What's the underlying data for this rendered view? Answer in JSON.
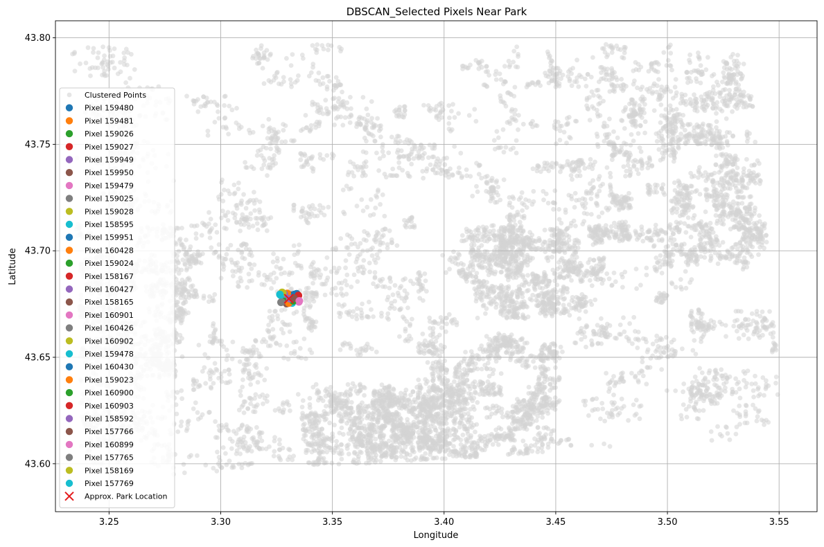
{
  "chart_data": {
    "type": "scatter",
    "title": "DBSCAN_Selected Pixels Near Park",
    "xlabel": "Longitude",
    "ylabel": "Latitude",
    "xlim": [
      3.226,
      3.567
    ],
    "ylim": [
      43.5775,
      43.808
    ],
    "grid": true,
    "legend_position": "center-left",
    "x_ticks": [
      {
        "value": 3.25,
        "label": "3.25"
      },
      {
        "value": 3.3,
        "label": "3.30"
      },
      {
        "value": 3.35,
        "label": "3.35"
      },
      {
        "value": 3.4,
        "label": "3.40"
      },
      {
        "value": 3.45,
        "label": "3.45"
      },
      {
        "value": 3.5,
        "label": "3.50"
      },
      {
        "value": 3.55,
        "label": "3.55"
      }
    ],
    "y_ticks": [
      {
        "value": 43.6,
        "label": "43.60"
      },
      {
        "value": 43.65,
        "label": "43.65"
      },
      {
        "value": 43.7,
        "label": "43.70"
      },
      {
        "value": 43.75,
        "label": "43.75"
      },
      {
        "value": 43.8,
        "label": "43.80"
      }
    ],
    "background_series": {
      "name": "Clustered Points",
      "color": "#d3d3d3",
      "extent_polygon": [
        [
          3.233,
          43.797
        ],
        [
          3.536,
          43.797
        ],
        [
          3.553,
          43.612
        ],
        [
          3.238,
          43.592
        ]
      ]
    },
    "park_marker": {
      "name": "Approx. Park Location",
      "x": 3.3305,
      "y": 43.6775,
      "color": "#e41a1c"
    },
    "series": [
      {
        "name": "Pixel 159480",
        "color": "#1f77b4",
        "x": 3.3318,
        "y": 43.6785
      },
      {
        "name": "Pixel 159481",
        "color": "#ff7f0e",
        "x": 3.3335,
        "y": 43.6782
      },
      {
        "name": "Pixel 159026",
        "color": "#2ca02c",
        "x": 3.3312,
        "y": 43.6768
      },
      {
        "name": "Pixel 159027",
        "color": "#d62728",
        "x": 3.333,
        "y": 43.677
      },
      {
        "name": "Pixel 159949",
        "color": "#9467bd",
        "x": 3.33,
        "y": 43.679
      },
      {
        "name": "Pixel 159950",
        "color": "#8c564b",
        "x": 3.3315,
        "y": 43.6792
      },
      {
        "name": "Pixel 159479",
        "color": "#e377c2",
        "x": 3.3302,
        "y": 43.6782
      },
      {
        "name": "Pixel 159025",
        "color": "#7f7f7f",
        "x": 3.3295,
        "y": 43.6766
      },
      {
        "name": "Pixel 159028",
        "color": "#bcbd22",
        "x": 3.3345,
        "y": 43.6773
      },
      {
        "name": "Pixel 158595",
        "color": "#17becf",
        "x": 3.332,
        "y": 43.6755
      },
      {
        "name": "Pixel 159951",
        "color": "#1f77b4",
        "x": 3.333,
        "y": 43.6795
      },
      {
        "name": "Pixel 160428",
        "color": "#ff7f0e",
        "x": 3.3298,
        "y": 43.68
      },
      {
        "name": "Pixel 159024",
        "color": "#2ca02c",
        "x": 3.3282,
        "y": 43.6762
      },
      {
        "name": "Pixel 158167",
        "color": "#d62728",
        "x": 3.334,
        "y": 43.6788
      },
      {
        "name": "Pixel 160427",
        "color": "#9467bd",
        "x": 3.3285,
        "y": 43.6797
      },
      {
        "name": "Pixel 158165",
        "color": "#8c564b",
        "x": 3.3295,
        "y": 43.6752
      },
      {
        "name": "Pixel 160901",
        "color": "#e377c2",
        "x": 3.335,
        "y": 43.676
      },
      {
        "name": "Pixel 160426",
        "color": "#7f7f7f",
        "x": 3.3272,
        "y": 43.676
      },
      {
        "name": "Pixel 160902",
        "color": "#bcbd22",
        "x": 3.3278,
        "y": 43.6802
      },
      {
        "name": "Pixel 159478",
        "color": "#17becf",
        "x": 3.3268,
        "y": 43.6792
      },
      {
        "name": "Pixel 160430",
        "color": "#1f77b4",
        "x": 3.334,
        "y": 43.6798
      },
      {
        "name": "Pixel 159023",
        "color": "#ff7f0e",
        "x": 3.3305,
        "y": 43.6755
      },
      {
        "name": "Pixel 160900",
        "color": "#2ca02c",
        "x": 3.3325,
        "y": 43.6765
      },
      {
        "name": "Pixel 160903",
        "color": "#d62728",
        "x": 3.3348,
        "y": 43.679
      },
      {
        "name": "Pixel 158592",
        "color": "#9467bd",
        "x": 3.331,
        "y": 43.6775
      },
      {
        "name": "Pixel 157766",
        "color": "#8c564b",
        "x": 3.3328,
        "y": 43.6778
      },
      {
        "name": "Pixel 160899",
        "color": "#e377c2",
        "x": 3.3352,
        "y": 43.6765
      },
      {
        "name": "Pixel 157765",
        "color": "#7f7f7f",
        "x": 3.327,
        "y": 43.6758
      },
      {
        "name": "Pixel 158169",
        "color": "#bcbd22",
        "x": 3.3275,
        "y": 43.6805
      },
      {
        "name": "Pixel 157769",
        "color": "#17becf",
        "x": 3.3265,
        "y": 43.6795
      }
    ]
  }
}
